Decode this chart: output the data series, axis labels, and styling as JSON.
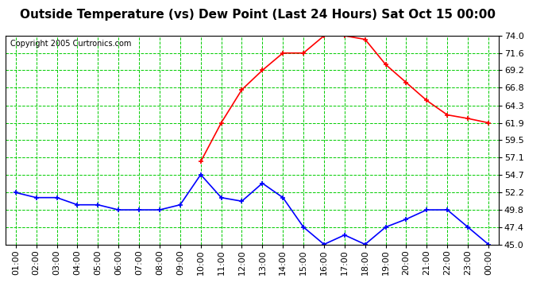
{
  "title": "Outside Temperature (vs) Dew Point (Last 24 Hours) Sat Oct 15 00:00",
  "copyright": "Copyright 2005 Curtronics.com",
  "x_labels": [
    "01:00",
    "02:00",
    "03:00",
    "04:00",
    "05:00",
    "06:00",
    "07:00",
    "08:00",
    "09:00",
    "10:00",
    "11:00",
    "12:00",
    "13:00",
    "14:00",
    "15:00",
    "16:00",
    "17:00",
    "18:00",
    "19:00",
    "20:00",
    "21:00",
    "22:00",
    "23:00",
    "00:00"
  ],
  "temp_data": [
    52.2,
    51.5,
    51.5,
    50.5,
    50.5,
    49.8,
    49.8,
    49.8,
    50.5,
    54.7,
    51.5,
    51.0,
    53.5,
    51.5,
    47.4,
    45.0,
    46.3,
    45.0,
    47.4,
    48.5,
    49.8,
    49.8,
    47.4,
    45.0
  ],
  "dew_data": [
    null,
    null,
    null,
    null,
    null,
    null,
    null,
    null,
    null,
    56.5,
    61.9,
    66.5,
    69.2,
    71.6,
    71.6,
    74.0,
    74.0,
    73.5,
    70.0,
    67.5,
    65.0,
    63.0,
    62.5,
    61.9
  ],
  "temp_color": "#0000ff",
  "dew_color": "#ff0000",
  "grid_color": "#00cc00",
  "bg_color": "#ffffff",
  "plot_bg_color": "#ffffff",
  "ylim": [
    45.0,
    74.0
  ],
  "yticks": [
    45.0,
    47.4,
    49.8,
    52.2,
    54.7,
    57.1,
    59.5,
    61.9,
    64.3,
    66.8,
    69.2,
    71.6,
    74.0
  ],
  "title_fontsize": 11,
  "copyright_fontsize": 7,
  "tick_fontsize": 8
}
